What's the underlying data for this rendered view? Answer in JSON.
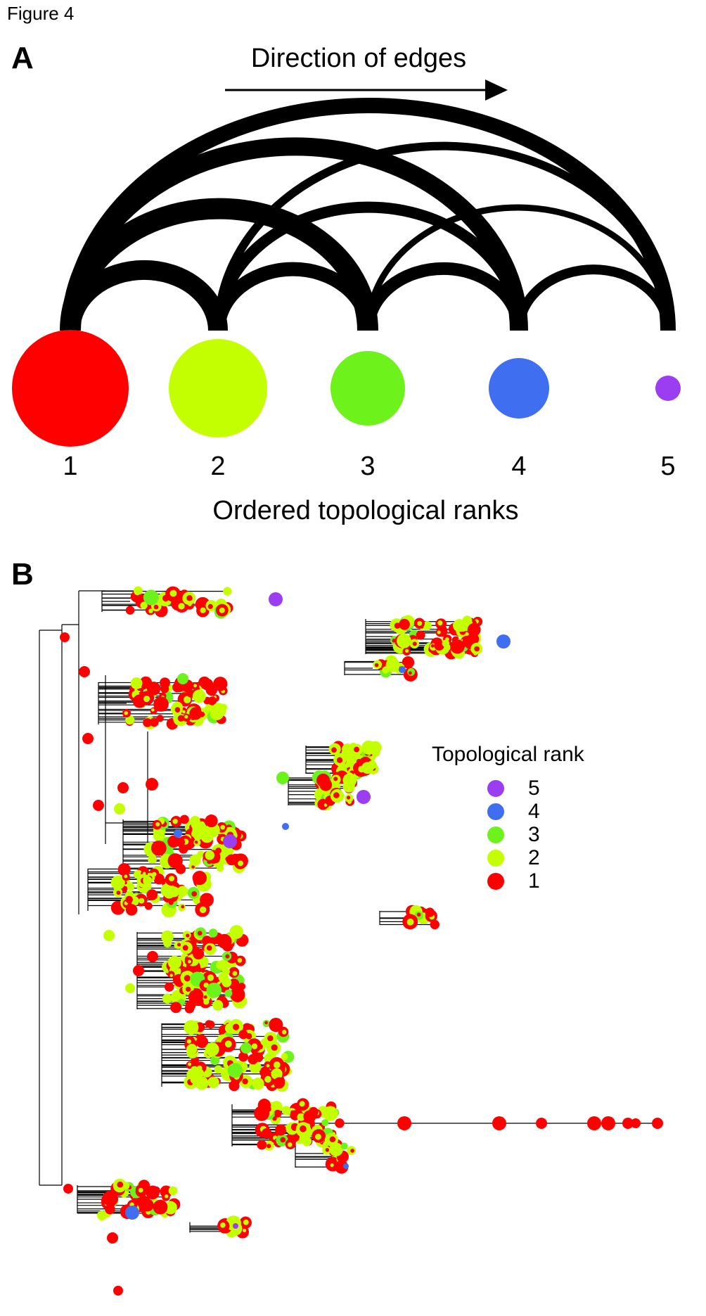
{
  "figure_label": "Figure 4",
  "panel_a": {
    "letter": "A",
    "direction_label": "Direction of edges",
    "axis_label": "Ordered topological ranks",
    "nodes": [
      {
        "rank": "1",
        "color": "#ff0000"
      },
      {
        "rank": "2",
        "color": "#c4ff00"
      },
      {
        "rank": "3",
        "color": "#6ef21c"
      },
      {
        "rank": "4",
        "color": "#3f6ef0"
      },
      {
        "rank": "5",
        "color": "#9b3df0"
      }
    ]
  },
  "panel_b": {
    "letter": "B",
    "legend": {
      "title": "Topological rank",
      "items": [
        {
          "label": "5",
          "color": "#9b3df0"
        },
        {
          "label": "4",
          "color": "#3f6ef0"
        },
        {
          "label": "3",
          "color": "#6ef21c"
        },
        {
          "label": "2",
          "color": "#c4ff00"
        },
        {
          "label": "1",
          "color": "#ff0000"
        }
      ]
    }
  }
}
